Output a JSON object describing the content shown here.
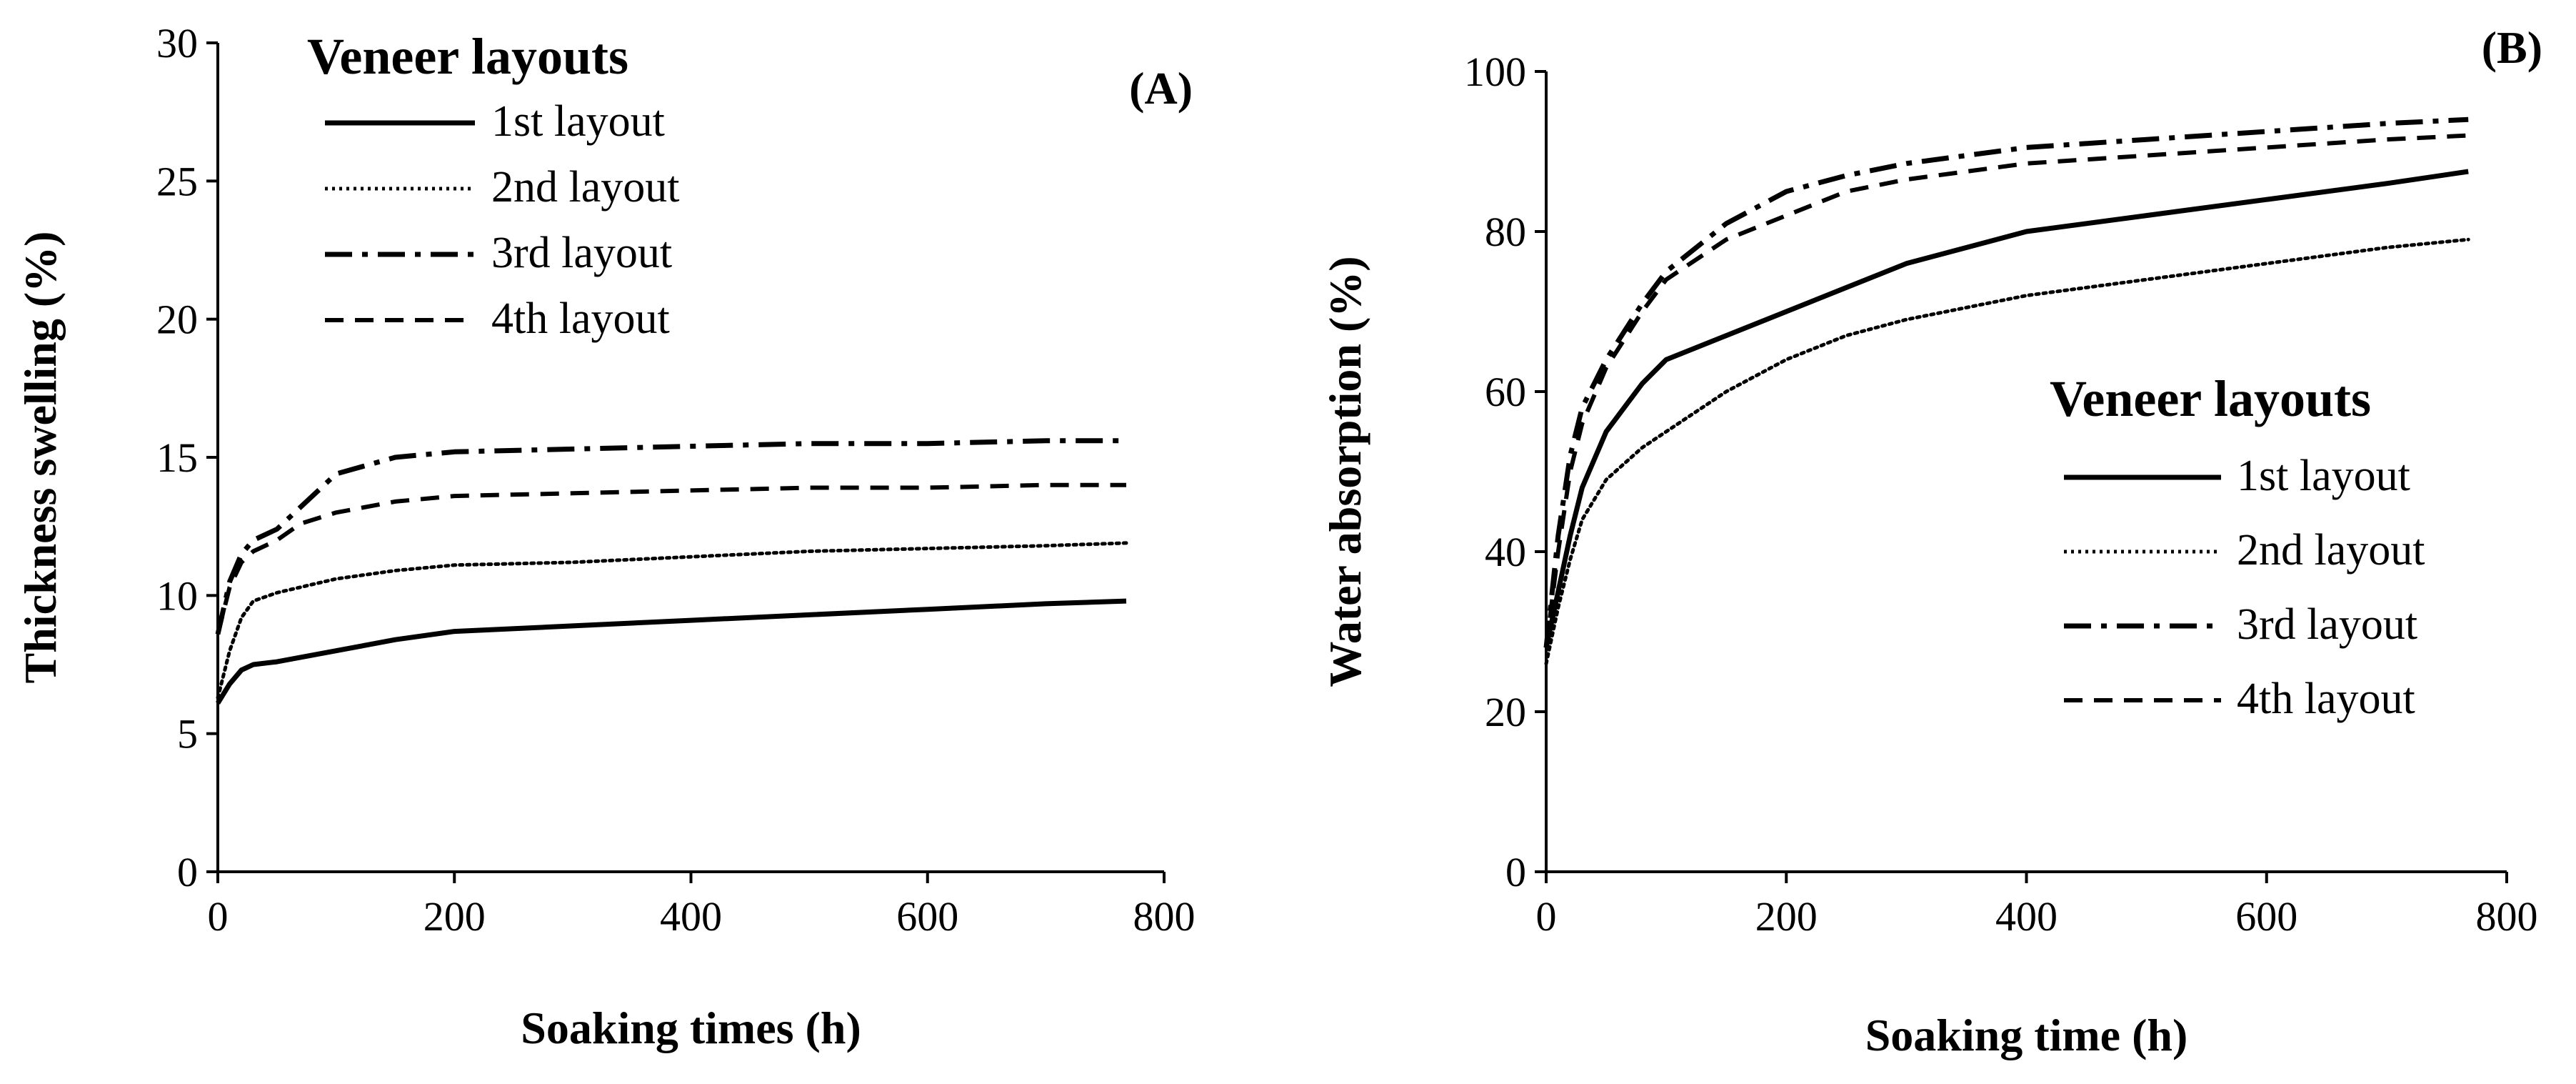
{
  "chart_data": [
    {
      "type": "line",
      "panel_label": "(A)",
      "xlabel": "Soaking times (h)",
      "ylabel": "Thickness swelling (%)",
      "xlim": [
        0,
        800
      ],
      "ylim": [
        0,
        30
      ],
      "xticks": [
        0,
        200,
        400,
        600,
        800
      ],
      "yticks": [
        0,
        5,
        10,
        15,
        20,
        25,
        30
      ],
      "legend_title": "Veneer layouts",
      "legend_position": "top-left",
      "series": [
        {
          "name": "1st layout",
          "style": "solid",
          "x": [
            0,
            10,
            20,
            30,
            50,
            100,
            150,
            200,
            300,
            400,
            500,
            600,
            700,
            768
          ],
          "y": [
            6.1,
            6.8,
            7.3,
            7.5,
            7.6,
            8.0,
            8.4,
            8.7,
            8.9,
            9.1,
            9.3,
            9.5,
            9.7,
            9.8
          ]
        },
        {
          "name": "2nd layout",
          "style": "dotted",
          "x": [
            0,
            10,
            20,
            30,
            50,
            100,
            150,
            200,
            300,
            400,
            500,
            600,
            700,
            768
          ],
          "y": [
            6.3,
            8.0,
            9.2,
            9.8,
            10.1,
            10.6,
            10.9,
            11.1,
            11.2,
            11.4,
            11.6,
            11.7,
            11.8,
            11.9
          ]
        },
        {
          "name": "3rd layout",
          "style": "dashdot",
          "x": [
            0,
            10,
            20,
            30,
            50,
            70,
            100,
            150,
            200,
            300,
            400,
            500,
            600,
            700,
            768
          ],
          "y": [
            8.6,
            10.5,
            11.5,
            12.0,
            12.4,
            13.2,
            14.4,
            15.0,
            15.2,
            15.3,
            15.4,
            15.5,
            15.5,
            15.6,
            15.6
          ]
        },
        {
          "name": "4th layout",
          "style": "dashed",
          "x": [
            0,
            10,
            20,
            30,
            50,
            70,
            100,
            150,
            200,
            300,
            400,
            500,
            600,
            700,
            768
          ],
          "y": [
            8.6,
            10.3,
            11.2,
            11.6,
            12.0,
            12.6,
            13.0,
            13.4,
            13.6,
            13.7,
            13.8,
            13.9,
            13.9,
            14.0,
            14.0
          ]
        }
      ]
    },
    {
      "type": "line",
      "panel_label": "(B)",
      "xlabel": "Soaking time (h)",
      "ylabel": "Water absorption (%)",
      "xlim": [
        0,
        800
      ],
      "ylim": [
        0,
        100
      ],
      "xticks": [
        0,
        200,
        400,
        600,
        800
      ],
      "yticks": [
        0,
        20,
        40,
        60,
        80,
        100
      ],
      "legend_title": "Veneer layouts",
      "legend_position": "center-right",
      "series": [
        {
          "name": "1st layout",
          "style": "solid",
          "x": [
            0,
            10,
            20,
            30,
            50,
            80,
            100,
            150,
            200,
            250,
            300,
            400,
            500,
            600,
            700,
            768
          ],
          "y": [
            28,
            35,
            42,
            48,
            55,
            61,
            64,
            67,
            70,
            73,
            76,
            80,
            82,
            84,
            86,
            87.5
          ]
        },
        {
          "name": "2nd layout",
          "style": "dotted",
          "x": [
            0,
            10,
            20,
            30,
            50,
            80,
            100,
            150,
            200,
            250,
            300,
            400,
            500,
            600,
            700,
            768
          ],
          "y": [
            26,
            33,
            39,
            44,
            49,
            53,
            55,
            60,
            64,
            67,
            69,
            72,
            74,
            76,
            78,
            79
          ]
        },
        {
          "name": "3rd layout",
          "style": "dashdot",
          "x": [
            0,
            10,
            20,
            30,
            50,
            80,
            100,
            150,
            200,
            250,
            300,
            400,
            500,
            600,
            700,
            768
          ],
          "y": [
            28,
            42,
            52,
            58,
            64,
            71,
            75,
            81,
            85,
            87,
            88.5,
            90.5,
            91.5,
            92.5,
            93.5,
            94
          ]
        },
        {
          "name": "4th layout",
          "style": "dashed",
          "x": [
            0,
            10,
            20,
            30,
            50,
            80,
            100,
            150,
            200,
            250,
            300,
            400,
            500,
            600,
            700,
            768
          ],
          "y": [
            28,
            40,
            50,
            56,
            63,
            70,
            74,
            79,
            82,
            85,
            86.5,
            88.5,
            89.5,
            90.5,
            91.5,
            92
          ]
        }
      ]
    }
  ]
}
